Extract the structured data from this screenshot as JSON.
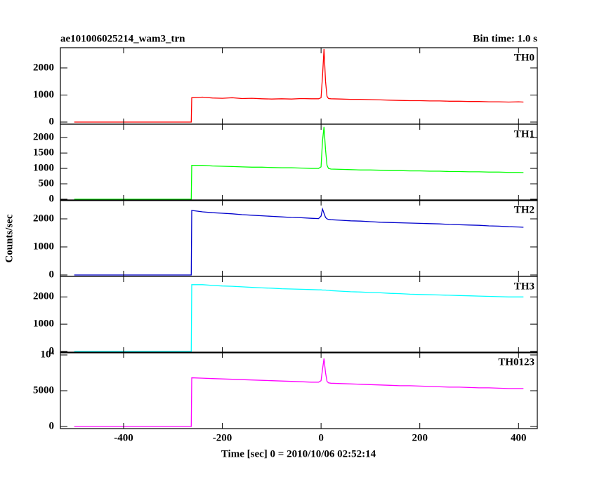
{
  "title": "ae101006025214_wam3_trn",
  "bin_time": "Bin time: 1.0 s",
  "xlabel": "Time [sec] 0 = 2010/10/06 02:52:14",
  "ylabel": "Counts/sec",
  "chart_data": [
    {
      "type": "line",
      "x": [
        -500,
        -263,
        -262,
        -240,
        -220,
        -200,
        -180,
        -160,
        -140,
        -120,
        -100,
        -80,
        -60,
        -40,
        -20,
        -5,
        0,
        3,
        6,
        9,
        12,
        15,
        20,
        40,
        60,
        80,
        100,
        120,
        140,
        160,
        180,
        200,
        220,
        240,
        260,
        280,
        300,
        320,
        340,
        360,
        380,
        400,
        410
      ],
      "xlim": [
        -528,
        438
      ],
      "xticks": [
        -400,
        -200,
        0,
        200,
        400
      ],
      "ylim": [
        -78,
        2750
      ],
      "yticks": [
        0,
        1000,
        2000
      ],
      "series": [
        {
          "name": "TH0",
          "color": "#ff0000",
          "values": [
            0,
            0,
            900,
            920,
            890,
            880,
            900,
            870,
            880,
            860,
            850,
            860,
            850,
            870,
            860,
            860,
            900,
            1700,
            2700,
            1500,
            950,
            870,
            860,
            850,
            840,
            840,
            830,
            820,
            810,
            800,
            790,
            790,
            780,
            780,
            770,
            770,
            760,
            760,
            750,
            750,
            740,
            750,
            740
          ]
        }
      ]
    },
    {
      "type": "line",
      "x": [
        -500,
        -263,
        -262,
        -240,
        -220,
        -200,
        -180,
        -160,
        -140,
        -120,
        -100,
        -80,
        -60,
        -40,
        -20,
        -5,
        0,
        3,
        6,
        9,
        12,
        15,
        20,
        40,
        60,
        80,
        100,
        120,
        140,
        160,
        180,
        200,
        220,
        240,
        260,
        280,
        300,
        320,
        340,
        360,
        380,
        400,
        410
      ],
      "xlim": [
        -528,
        438
      ],
      "xticks": [
        -400,
        -200,
        0,
        200,
        400
      ],
      "ylim": [
        -46,
        2437
      ],
      "yticks": [
        0,
        500,
        1000,
        1500,
        2000
      ],
      "series": [
        {
          "name": "TH1",
          "color": "#00ff00",
          "values": [
            0,
            0,
            1100,
            1100,
            1080,
            1070,
            1060,
            1050,
            1040,
            1040,
            1030,
            1020,
            1020,
            1010,
            1000,
            1000,
            1050,
            1900,
            2350,
            1600,
            1100,
            1000,
            980,
            970,
            960,
            950,
            950,
            940,
            930,
            930,
            920,
            920,
            910,
            910,
            900,
            900,
            890,
            890,
            880,
            880,
            870,
            870,
            860
          ]
        }
      ]
    },
    {
      "type": "line",
      "x": [
        -500,
        -263,
        -262,
        -240,
        -220,
        -200,
        -180,
        -160,
        -140,
        -120,
        -100,
        -80,
        -60,
        -40,
        -20,
        -5,
        0,
        3,
        6,
        9,
        12,
        15,
        20,
        40,
        60,
        80,
        100,
        120,
        140,
        160,
        180,
        200,
        220,
        240,
        260,
        280,
        300,
        320,
        340,
        360,
        380,
        400,
        410
      ],
      "xlim": [
        -528,
        438
      ],
      "xticks": [
        -400,
        -200,
        0,
        200,
        400
      ],
      "ylim": [
        -50,
        2675
      ],
      "yticks": [
        0,
        1000,
        2000
      ],
      "series": [
        {
          "name": "TH2",
          "color": "#0000cc",
          "values": [
            0,
            0,
            2300,
            2250,
            2220,
            2200,
            2180,
            2150,
            2130,
            2110,
            2090,
            2070,
            2050,
            2040,
            2020,
            2010,
            2100,
            2350,
            2200,
            2050,
            2000,
            1980,
            1970,
            1950,
            1930,
            1920,
            1900,
            1880,
            1870,
            1860,
            1850,
            1840,
            1830,
            1820,
            1800,
            1790,
            1780,
            1770,
            1750,
            1740,
            1720,
            1710,
            1700
          ]
        }
      ]
    },
    {
      "type": "line",
      "x": [
        -500,
        -263,
        -262,
        -240,
        -220,
        -200,
        -180,
        -160,
        -140,
        -120,
        -100,
        -80,
        -60,
        -40,
        -20,
        -5,
        0,
        3,
        6,
        9,
        12,
        15,
        20,
        40,
        60,
        80,
        100,
        120,
        140,
        160,
        180,
        200,
        220,
        240,
        260,
        280,
        300,
        320,
        340,
        360,
        380,
        400,
        410
      ],
      "xlim": [
        -528,
        438
      ],
      "xticks": [
        -400,
        -200,
        0,
        200,
        400
      ],
      "ylim": [
        -52,
        2753
      ],
      "yticks": [
        0,
        1000,
        2000
      ],
      "series": [
        {
          "name": "TH3",
          "color": "#00ffff",
          "values": [
            0,
            0,
            2450,
            2450,
            2420,
            2400,
            2390,
            2370,
            2350,
            2330,
            2320,
            2300,
            2290,
            2280,
            2270,
            2260,
            2260,
            2250,
            2250,
            2250,
            2240,
            2240,
            2230,
            2210,
            2190,
            2180,
            2160,
            2150,
            2130,
            2120,
            2100,
            2090,
            2080,
            2070,
            2060,
            2050,
            2040,
            2030,
            2020,
            2010,
            2000,
            2000,
            2000
          ]
        }
      ]
    },
    {
      "type": "line",
      "x": [
        -500,
        -263,
        -262,
        -240,
        -220,
        -200,
        -180,
        -160,
        -140,
        -120,
        -100,
        -80,
        -60,
        -40,
        -20,
        -5,
        0,
        3,
        6,
        9,
        12,
        15,
        20,
        40,
        60,
        80,
        100,
        120,
        140,
        160,
        180,
        200,
        220,
        240,
        260,
        280,
        300,
        320,
        340,
        360,
        380,
        400,
        410
      ],
      "xlim": [
        -528,
        438
      ],
      "xticks": [
        -400,
        -200,
        0,
        200,
        400
      ],
      "ylim": [
        -294,
        10392
      ],
      "yticks": [
        0,
        5000,
        {
          "value": 10000,
          "label": "10⁴"
        }
      ],
      "series": [
        {
          "name": "TH0123",
          "color": "#ff00ff",
          "values": [
            0,
            0,
            6800,
            6750,
            6700,
            6650,
            6600,
            6550,
            6500,
            6450,
            6400,
            6350,
            6300,
            6250,
            6200,
            6200,
            6400,
            8000,
            9500,
            7500,
            6300,
            6100,
            6050,
            6000,
            5950,
            5900,
            5850,
            5800,
            5750,
            5700,
            5700,
            5650,
            5600,
            5550,
            5500,
            5500,
            5450,
            5400,
            5400,
            5350,
            5300,
            5300,
            5300
          ]
        }
      ]
    }
  ]
}
